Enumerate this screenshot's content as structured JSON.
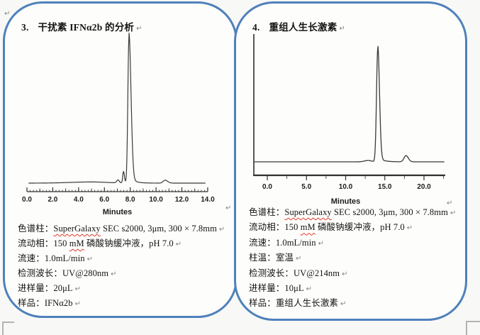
{
  "page": {
    "background": "#f8f8f6",
    "panel_border_color": "#4e81bb",
    "squiggle_color": "#e2382c",
    "paragraph_mark": "↵"
  },
  "panels": [
    {
      "number": "3.",
      "title": "干扰素 IFNα2b 的分析",
      "specs": [
        {
          "label": "色谱柱：",
          "parts": [
            {
              "t": "SuperGalaxy",
              "wavy": true
            },
            {
              "t": " SEC s2000, 3μm, 300 × 7.8mm"
            }
          ]
        },
        {
          "label": "流动相：",
          "parts": [
            {
              "t": "150 "
            },
            {
              "t": "mM",
              "wavy": true
            },
            {
              "t": " 磷酸钠缓冲液，pH 7.0"
            }
          ]
        },
        {
          "label": "流速：",
          "parts": [
            {
              "t": "1.0mL/min"
            }
          ]
        },
        {
          "label": "检测波长：",
          "parts": [
            {
              "t": "UV@280nm"
            }
          ]
        },
        {
          "label": "进样量：",
          "parts": [
            {
              "t": "20μL"
            }
          ]
        },
        {
          "label": "样品：",
          "parts": [
            {
              "t": "IFNα2b"
            }
          ]
        }
      ]
    },
    {
      "number": "4.",
      "title": "重组人生长激素",
      "specs": [
        {
          "label": "色谱柱：",
          "parts": [
            {
              "t": "SuperGalaxy",
              "wavy": true
            },
            {
              "t": " SEC s2000, 3μm, 300 × 7.8mm"
            }
          ]
        },
        {
          "label": "流动相：",
          "parts": [
            {
              "t": "150 "
            },
            {
              "t": "mM",
              "wavy": true
            },
            {
              "t": " 磷酸钠缓冲液，pH 7.0"
            }
          ]
        },
        {
          "label": "流速：",
          "parts": [
            {
              "t": "1.0mL/min"
            }
          ]
        },
        {
          "label": "柱温：",
          "parts": [
            {
              "t": "室温"
            }
          ]
        },
        {
          "label": "检测波长：",
          "parts": [
            {
              "t": "UV@214nm"
            }
          ]
        },
        {
          "label": "进样量：",
          "parts": [
            {
              "t": "10μL"
            }
          ]
        },
        {
          "label": "样品：",
          "parts": [
            {
              "t": "重组人生长激素"
            }
          ]
        }
      ]
    }
  ],
  "chart_data": [
    {
      "type": "line",
      "xlabel": "Minutes",
      "xlim": [
        0,
        14
      ],
      "axis_range": [
        0,
        14
      ],
      "xticks": [
        0,
        2,
        4,
        6,
        8,
        10,
        12,
        14
      ],
      "xtick_labels": [
        "0.0",
        "2.0",
        "4.0",
        "6.0",
        "8.0",
        "10.0",
        "12.0",
        "14.0"
      ],
      "medium_tick_step": 1.0,
      "minor_tick_step": 0.25,
      "y_axis": false,
      "grid": false,
      "baseline_range": [
        0.15,
        13.8
      ],
      "peaks": [
        {
          "center": 5.0,
          "height": 0.008,
          "sigma_l": 1.6,
          "sigma_r": 1.2
        },
        {
          "center": 7.05,
          "height": 0.02,
          "sigma_l": 0.1,
          "sigma_r": 0.1
        },
        {
          "center": 7.48,
          "height": 0.08,
          "sigma_l": 0.06,
          "sigma_r": 0.07
        },
        {
          "center": 7.9,
          "height": 1.0,
          "sigma_l": 0.085,
          "sigma_r": 0.16,
          "tail": {
            "a": 0.045,
            "tau": 0.38
          }
        },
        {
          "center": 10.7,
          "height": 0.02,
          "sigma_l": 0.15,
          "sigma_r": 0.2
        }
      ]
    },
    {
      "type": "line",
      "xlabel": "Minutes",
      "xlim": [
        0,
        20
      ],
      "axis_range": [
        -1.8,
        22.7
      ],
      "xticks": [
        0,
        5,
        10,
        15,
        20
      ],
      "xtick_labels": [
        "0.0",
        "5.0",
        "10.0",
        "15.0",
        "20.0"
      ],
      "minor_tick_step": 2.5,
      "y_axis": true,
      "grid": false,
      "baseline_range": [
        -1.6,
        22.55
      ],
      "peaks": [
        {
          "center": 12.9,
          "height": 0.012,
          "sigma_l": 0.5,
          "sigma_r": 0.4
        },
        {
          "center": 14.1,
          "height": 1.0,
          "sigma_l": 0.16,
          "sigma_r": 0.22,
          "tail": {
            "a": 0.035,
            "tau": 0.7
          }
        },
        {
          "center": 17.7,
          "height": 0.055,
          "sigma_l": 0.25,
          "sigma_r": 0.3
        }
      ]
    }
  ]
}
